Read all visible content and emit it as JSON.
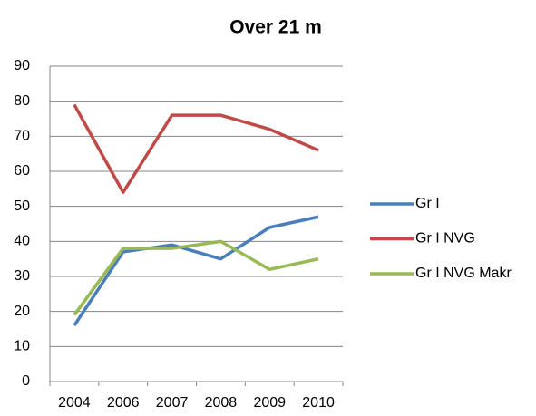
{
  "chart_data": {
    "type": "line",
    "title": "Over 21 m",
    "categories": [
      "2004",
      "2006",
      "2007",
      "2008",
      "2009",
      "2010"
    ],
    "series": [
      {
        "name": "Gr I",
        "color": "#4a7ebb",
        "values": [
          16,
          37,
          39,
          35,
          44,
          47
        ]
      },
      {
        "name": "Gr I NVG",
        "color": "#be4b48",
        "values": [
          79,
          54,
          76,
          76,
          72,
          66
        ]
      },
      {
        "name": "Gr I NVG Makr",
        "color": "#98b954",
        "values": [
          19,
          38,
          38,
          40,
          32,
          35
        ]
      }
    ],
    "ylim": [
      0,
      90
    ],
    "yticks": [
      0,
      10,
      20,
      30,
      40,
      50,
      60,
      70,
      80,
      90
    ],
    "grid": true,
    "legend": "right"
  }
}
